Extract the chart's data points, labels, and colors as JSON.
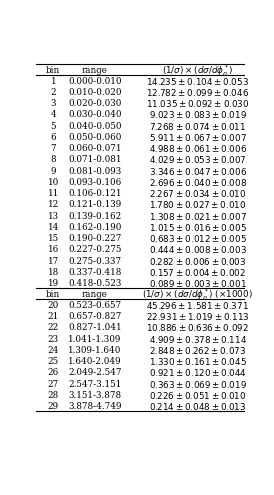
{
  "rows1": [
    [
      1,
      "0.000-0.010",
      "14.235",
      "0.104",
      "0.053"
    ],
    [
      2,
      "0.010-0.020",
      "12.782",
      "0.099",
      "0.046"
    ],
    [
      3,
      "0.020-0.030",
      "11.035",
      "0.092",
      "0.030"
    ],
    [
      4,
      "0.030-0.040",
      "9.023",
      "0.083",
      "0.019"
    ],
    [
      5,
      "0.040-0.050",
      "7.268",
      "0.074",
      "0.011"
    ],
    [
      6,
      "0.050-0.060",
      "5.911",
      "0.067",
      "0.007"
    ],
    [
      7,
      "0.060-0.071",
      "4.988",
      "0.061",
      "0.006"
    ],
    [
      8,
      "0.071-0.081",
      "4.029",
      "0.053",
      "0.007"
    ],
    [
      9,
      "0.081-0.093",
      "3.346",
      "0.047",
      "0.006"
    ],
    [
      10,
      "0.093-0.106",
      "2.696",
      "0.040",
      "0.008"
    ],
    [
      11,
      "0.106-0.121",
      "2.267",
      "0.034",
      "0.010"
    ],
    [
      12,
      "0.121-0.139",
      "1.780",
      "0.027",
      "0.010"
    ],
    [
      13,
      "0.139-0.162",
      "1.308",
      "0.021",
      "0.007"
    ],
    [
      14,
      "0.162-0.190",
      "1.015",
      "0.016",
      "0.005"
    ],
    [
      15,
      "0.190-0.227",
      "0.683",
      "0.012",
      "0.005"
    ],
    [
      16,
      "0.227-0.275",
      "0.444",
      "0.008",
      "0.003"
    ],
    [
      17,
      "0.275-0.337",
      "0.282",
      "0.006",
      "0.003"
    ],
    [
      18,
      "0.337-0.418",
      "0.157",
      "0.004",
      "0.002"
    ],
    [
      19,
      "0.418-0.523",
      "0.089",
      "0.003",
      "0.001"
    ]
  ],
  "rows2": [
    [
      20,
      "0.523-0.657",
      "45.296",
      "1.581",
      "0.371"
    ],
    [
      21,
      "0.657-0.827",
      "22.931",
      "1.019",
      "0.113"
    ],
    [
      22,
      "0.827-1.041",
      "10.886",
      "0.636",
      "0.092"
    ],
    [
      23,
      "1.041-1.309",
      "4.909",
      "0.378",
      "0.114"
    ],
    [
      24,
      "1.309-1.640",
      "2.848",
      "0.262",
      "0.073"
    ],
    [
      25,
      "1.640-2.049",
      "1.330",
      "0.161",
      "0.045"
    ],
    [
      26,
      "2.049-2.547",
      "0.921",
      "0.120",
      "0.044"
    ],
    [
      27,
      "2.547-3.151",
      "0.363",
      "0.069",
      "0.019"
    ],
    [
      28,
      "3.151-3.878",
      "0.226",
      "0.051",
      "0.010"
    ],
    [
      29,
      "3.878-4.749",
      "0.214",
      "0.048",
      "0.013"
    ]
  ],
  "col_bin": 0.09,
  "col_range": 0.285,
  "col_val": 0.77,
  "fs": 6.3,
  "lw": 0.8
}
